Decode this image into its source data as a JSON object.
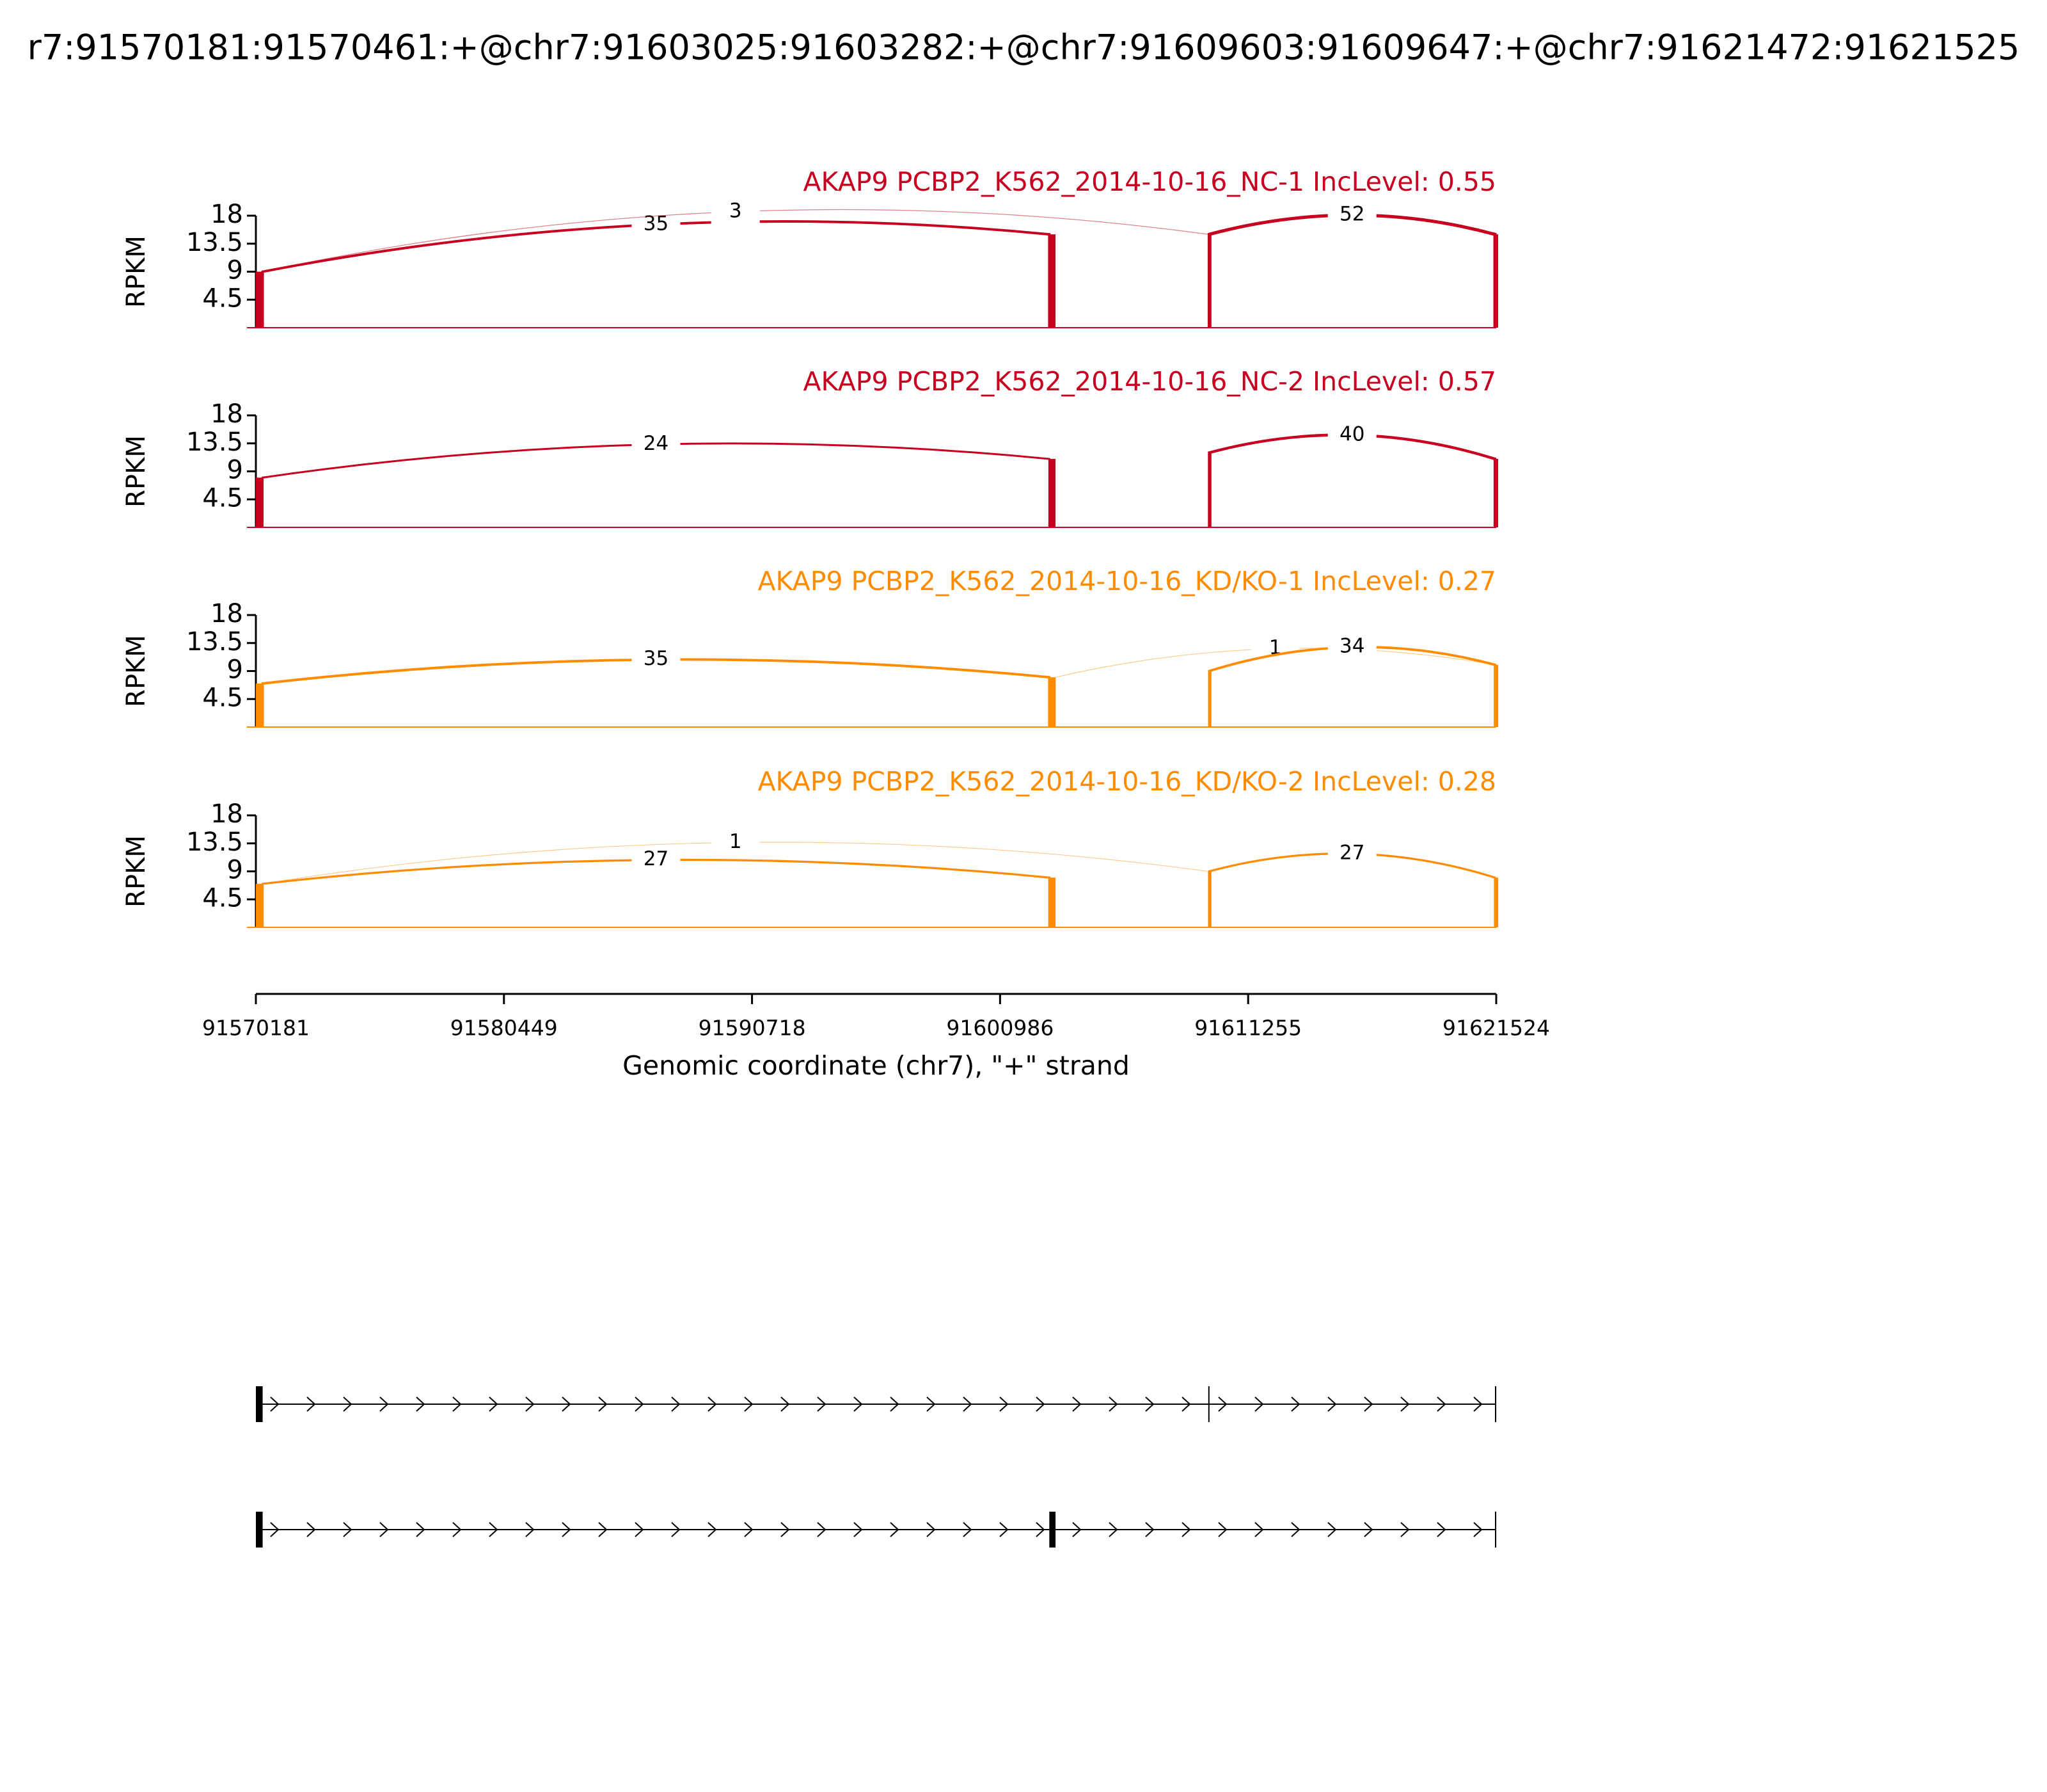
{
  "title": "r7:91570181:91570461:+@chr7:91603025:91603282:+@chr7:91609603:91609647:+@chr7:91621472:91621525",
  "exons": [
    [
      91570181,
      91570461
    ],
    [
      91603025,
      91603282
    ],
    [
      91609603,
      91609647
    ],
    [
      91621472,
      91621525
    ]
  ],
  "chart_data": [
    {
      "type": "sashimi",
      "title": "AKAP9 PCBP2_K562_2014-10-16_NC-1 IncLevel: 0.55",
      "color": "#c80020",
      "ylabel": "RPKM",
      "ylim": [
        0,
        18
      ],
      "yticks": [
        4.5,
        9,
        13.5,
        18
      ],
      "values": [
        9,
        15,
        15,
        15
      ],
      "junctions": [
        {
          "from": 91570461,
          "to": 91603025,
          "value": 35
        },
        {
          "from": 91570461,
          "to": 91609603,
          "value": 3
        },
        {
          "from": 91609647,
          "to": 91621472,
          "value": 52
        }
      ]
    },
    {
      "type": "sashimi",
      "title": "AKAP9 PCBP2_K562_2014-10-16_NC-2 IncLevel: 0.57",
      "color": "#c80020",
      "ylabel": "RPKM",
      "ylim": [
        0,
        18
      ],
      "yticks": [
        4.5,
        9,
        13.5,
        18
      ],
      "values": [
        8,
        11,
        12,
        11
      ],
      "junctions": [
        {
          "from": 91570461,
          "to": 91603025,
          "value": 24
        },
        {
          "from": 91609647,
          "to": 91621472,
          "value": 40
        }
      ]
    },
    {
      "type": "sashimi",
      "title": "AKAP9 PCBP2_K562_2014-10-16_KD/KO-1 IncLevel: 0.27",
      "color": "#ff8c00",
      "ylabel": "RPKM",
      "ylim": [
        0,
        18
      ],
      "yticks": [
        4.5,
        9,
        13.5,
        18
      ],
      "values": [
        7,
        8,
        9,
        10
      ],
      "junctions": [
        {
          "from": 91570461,
          "to": 91603025,
          "value": 35
        },
        {
          "from": 91603282,
          "to": 91621472,
          "value": 1
        },
        {
          "from": 91609647,
          "to": 91621472,
          "value": 34
        }
      ]
    },
    {
      "type": "sashimi",
      "title": "AKAP9 PCBP2_K562_2014-10-16_KD/KO-2 IncLevel: 0.28",
      "color": "#ff8c00",
      "ylabel": "RPKM",
      "ylim": [
        0,
        18
      ],
      "yticks": [
        4.5,
        9,
        13.5,
        18
      ],
      "values": [
        7,
        8,
        9,
        8
      ],
      "junctions": [
        {
          "from": 91570461,
          "to": 91603025,
          "value": 27
        },
        {
          "from": 91570461,
          "to": 91609603,
          "value": 1
        },
        {
          "from": 91609647,
          "to": 91621472,
          "value": 27
        }
      ]
    }
  ],
  "x_axis": {
    "xlim": [
      91570181,
      91621524
    ],
    "xticks": [
      91570181,
      91580449,
      91590718,
      91600986,
      91611255,
      91621524
    ],
    "xlabel": "Genomic coordinate (chr7), \"+\" strand"
  },
  "transcripts": [
    {
      "exons": [
        [
          91570181,
          91570461
        ],
        [
          91609603,
          91609647
        ],
        [
          91621472,
          91621525
        ]
      ]
    },
    {
      "exons": [
        [
          91570181,
          91570461
        ],
        [
          91603025,
          91603282
        ],
        [
          91621472,
          91621525
        ]
      ]
    }
  ]
}
